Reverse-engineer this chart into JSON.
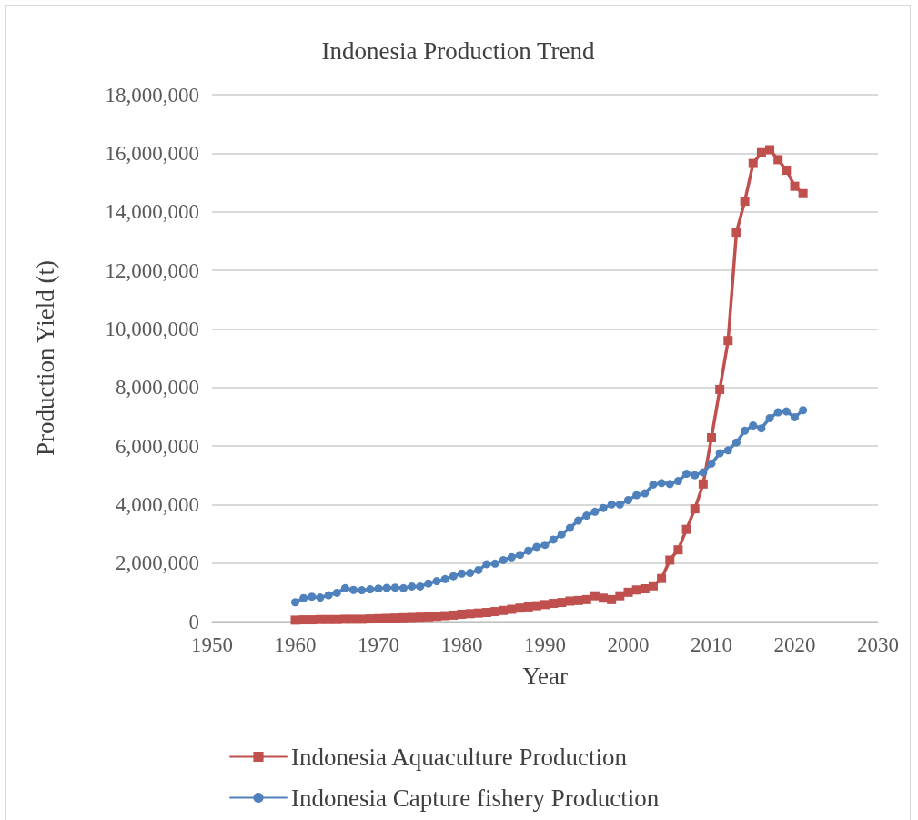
{
  "chart_data": {
    "type": "line",
    "title": "Indonesia Production Trend",
    "xlabel": "Year",
    "ylabel": "Production Yield (t)",
    "x": [
      1960,
      1961,
      1962,
      1963,
      1964,
      1965,
      1966,
      1967,
      1968,
      1969,
      1970,
      1971,
      1972,
      1973,
      1974,
      1975,
      1976,
      1977,
      1978,
      1979,
      1980,
      1981,
      1982,
      1983,
      1984,
      1985,
      1986,
      1987,
      1988,
      1989,
      1990,
      1991,
      1992,
      1993,
      1994,
      1995,
      1996,
      1997,
      1998,
      1999,
      2000,
      2001,
      2002,
      2003,
      2004,
      2005,
      2006,
      2007,
      2008,
      2009,
      2010,
      2011,
      2012,
      2013,
      2014,
      2015,
      2016,
      2017,
      2018,
      2019,
      2020,
      2021
    ],
    "series": [
      {
        "name": "Indonesia Aquaculture Production",
        "color": "#c0504d",
        "marker": "square",
        "values": [
          50000,
          60000,
          60000,
          70000,
          70000,
          70000,
          80000,
          80000,
          80000,
          90000,
          100000,
          110000,
          120000,
          130000,
          140000,
          150000,
          160000,
          180000,
          200000,
          220000,
          250000,
          270000,
          290000,
          310000,
          340000,
          380000,
          420000,
          460000,
          500000,
          540000,
          580000,
          620000,
          650000,
          700000,
          720000,
          750000,
          880000,
          800000,
          750000,
          880000,
          1000000,
          1080000,
          1120000,
          1220000,
          1470000,
          2100000,
          2450000,
          3150000,
          3850000,
          4700000,
          6280000,
          7930000,
          9600000,
          13300000,
          14360000,
          15650000,
          16020000,
          16120000,
          15780000,
          15420000,
          14870000,
          14620000
        ]
      },
      {
        "name": "Indonesia Capture fishery Production",
        "color": "#4f81bd",
        "marker": "circle",
        "values": [
          660000,
          800000,
          850000,
          820000,
          900000,
          980000,
          1140000,
          1080000,
          1070000,
          1100000,
          1130000,
          1150000,
          1160000,
          1140000,
          1200000,
          1200000,
          1300000,
          1380000,
          1450000,
          1550000,
          1640000,
          1660000,
          1760000,
          1960000,
          1980000,
          2100000,
          2200000,
          2280000,
          2420000,
          2550000,
          2620000,
          2800000,
          2980000,
          3200000,
          3450000,
          3620000,
          3750000,
          3880000,
          4000000,
          4000000,
          4150000,
          4320000,
          4380000,
          4680000,
          4730000,
          4700000,
          4800000,
          5050000,
          5000000,
          5100000,
          5400000,
          5750000,
          5850000,
          6120000,
          6520000,
          6700000,
          6600000,
          6950000,
          7150000,
          7180000,
          6980000,
          7220000
        ]
      }
    ],
    "xlim": [
      1950,
      2030
    ],
    "xticks": [
      1950,
      1960,
      1970,
      1980,
      1990,
      2000,
      2010,
      2020,
      2030
    ],
    "ylim": [
      0,
      18000000
    ],
    "yticks": [
      0,
      {
        "value": 2000000,
        "label": "2,000,000"
      },
      {
        "value": 4000000,
        "label": "4,000,000"
      },
      {
        "value": 6000000,
        "label": "6,000,000"
      },
      {
        "value": 8000000,
        "label": "8,000,000"
      },
      {
        "value": 10000000,
        "label": "10,000,000"
      },
      {
        "value": 12000000,
        "label": "12,000,000"
      },
      {
        "value": 14000000,
        "label": "14,000,000"
      },
      {
        "value": 16000000,
        "label": "16,000,000"
      },
      {
        "value": 18000000,
        "label": "18,000,000"
      }
    ],
    "grid": "y",
    "legend": "bottom",
    "line_style": "solid"
  }
}
